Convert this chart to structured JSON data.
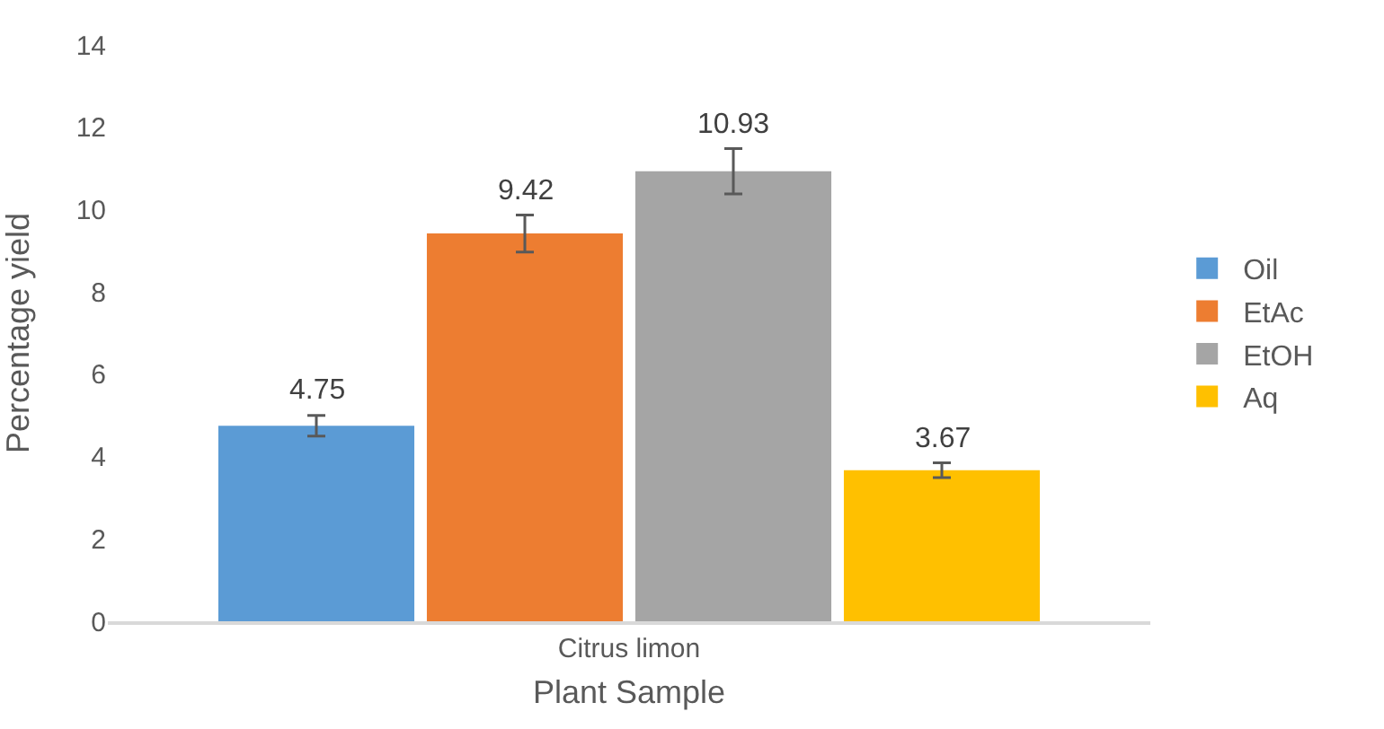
{
  "chart_data": {
    "type": "bar",
    "xlabel": "Plant Sample",
    "ylabel": "Percentage yield",
    "categories": [
      "Citrus limon"
    ],
    "series": [
      {
        "name": "Oil",
        "color": "#5b9bd5",
        "values": [
          4.75
        ],
        "errors": [
          0.25
        ]
      },
      {
        "name": "EtAc",
        "color": "#ed7d31",
        "values": [
          9.42
        ],
        "errors": [
          0.45
        ]
      },
      {
        "name": "EtOH",
        "color": "#a5a5a5",
        "values": [
          10.93
        ],
        "errors": [
          0.55
        ]
      },
      {
        "name": "Aq",
        "color": "#ffc000",
        "values": [
          3.67
        ],
        "errors": [
          0.18
        ]
      }
    ],
    "ylim": [
      0,
      14
    ],
    "yticks": [
      0,
      2,
      4,
      6,
      8,
      10,
      12,
      14
    ],
    "grid": false,
    "legend": "right",
    "data_labels": true
  }
}
